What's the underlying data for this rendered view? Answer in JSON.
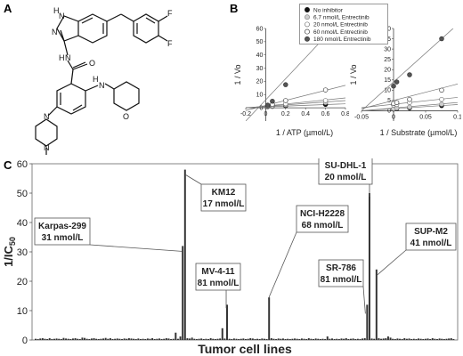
{
  "panels": {
    "a": "A",
    "b": "B",
    "c": "C"
  },
  "structure": {
    "atoms": [
      {
        "label": "H",
        "x": 0,
        "y": 0
      },
      {
        "label": "N",
        "x": 0,
        "y": 0
      },
      {
        "label": "N",
        "x": 0,
        "y": 0
      },
      {
        "label": "F",
        "x": 0,
        "y": 0
      },
      {
        "label": "F",
        "x": 0,
        "y": 0
      },
      {
        "label": "H",
        "x": 0,
        "y": 0
      },
      {
        "label": "N",
        "x": 0,
        "y": 0
      },
      {
        "label": "O",
        "x": 0,
        "y": 0
      },
      {
        "label": "H",
        "x": 0,
        "y": 0
      },
      {
        "label": "N",
        "x": 0,
        "y": 0
      },
      {
        "label": "O",
        "x": 0,
        "y": 0
      },
      {
        "label": "N",
        "x": 0,
        "y": 0
      },
      {
        "label": "N",
        "x": 0,
        "y": 0
      }
    ]
  },
  "legend": {
    "items": [
      {
        "label": "No inhibitor",
        "fill": "#111111"
      },
      {
        "label": "6.7 nmol/L Entrectinib",
        "fill": "#cfcfcf"
      },
      {
        "label": "20 nmol/L Entrectinib",
        "fill": "#ffffff"
      },
      {
        "label": "60 nmol/L Entrectinib",
        "fill": "#ffffff"
      },
      {
        "label": "180 nmol/L Entrectinib",
        "fill": "#555555"
      }
    ]
  },
  "chart_data": [
    {
      "type": "scatter",
      "panel": "B-left",
      "xlabel": "1 / ATP (µmol/L)",
      "ylabel": "1 / Vo",
      "xlim": [
        -0.2,
        0.8
      ],
      "ylim": [
        -10,
        60
      ],
      "xticks": [
        "-0.2",
        "0",
        "0.2",
        "0.4",
        "0.6",
        "0.8"
      ],
      "yticks": [
        "0",
        "10",
        "20",
        "30",
        "40",
        "50",
        "60"
      ],
      "series": [
        {
          "name": "No inhibitor",
          "x": [
            0.02,
            0.067,
            0.2,
            0.6
          ],
          "y": [
            0.8,
            1.1,
            1.6,
            2.6
          ],
          "fit": [
            [
              -0.2,
              0.2
            ],
            [
              0.8,
              3.0
            ]
          ]
        },
        {
          "name": "6.7 nmol/L Entrectinib",
          "x": [
            0.02,
            0.067,
            0.2,
            0.6
          ],
          "y": [
            0.9,
            1.3,
            2.2,
            4.0
          ],
          "fit": [
            [
              -0.2,
              0.0
            ],
            [
              0.8,
              5.5
            ]
          ]
        },
        {
          "name": "20 nmol/L Entrectinib",
          "x": [
            0.02,
            0.067,
            0.2,
            0.6
          ],
          "y": [
            1.0,
            1.6,
            3.0,
            5.5
          ],
          "fit": [
            [
              -0.2,
              -0.2
            ],
            [
              0.8,
              7.5
            ]
          ]
        },
        {
          "name": "60 nmol/L Entrectinib",
          "x": [
            0.02,
            0.067,
            0.2,
            0.6
          ],
          "y": [
            1.4,
            2.5,
            5.5,
            13.5
          ],
          "fit": [
            [
              -0.2,
              -2.0
            ],
            [
              0.8,
              17.0
            ]
          ]
        },
        {
          "name": "180 nmol/L Entrectinib",
          "x": [
            0.02,
            0.067,
            0.2,
            0.6
          ],
          "y": [
            2.0,
            5.0,
            17.5,
            52.0
          ],
          "fit": [
            [
              -0.2,
              -10.0
            ],
            [
              0.8,
              70.0
            ]
          ]
        }
      ]
    },
    {
      "type": "scatter",
      "panel": "B-right",
      "xlabel": "1 / Substrate (µmol/L)",
      "ylabel": "1 / Vo",
      "xlim": [
        -0.05,
        0.1
      ],
      "ylim": [
        -5,
        40
      ],
      "xticks": [
        "-0.05",
        "0",
        "0.05",
        "0.1"
      ],
      "yticks": [
        "0",
        "5",
        "10",
        "15",
        "20",
        "25",
        "30",
        "35",
        "40"
      ],
      "series": [
        {
          "name": "No inhibitor",
          "x": [
            0.0,
            0.005,
            0.025,
            0.075
          ],
          "y": [
            0.8,
            1.0,
            1.4,
            2.5
          ],
          "fit": [
            [
              -0.05,
              0.0
            ],
            [
              0.1,
              3.0
            ]
          ]
        },
        {
          "name": "6.7 nmol/L Entrectinib",
          "x": [
            0.0,
            0.005,
            0.025,
            0.075
          ],
          "y": [
            1.0,
            1.3,
            1.8,
            3.2
          ],
          "fit": [
            [
              -0.05,
              0.0
            ],
            [
              0.1,
              4.0
            ]
          ]
        },
        {
          "name": "20 nmol/L Entrectinib",
          "x": [
            0.0,
            0.005,
            0.025,
            0.075
          ],
          "y": [
            2.8,
            3.0,
            4.0,
            5.5
          ],
          "fit": [
            [
              -0.05,
              1.5
            ],
            [
              0.1,
              6.5
            ]
          ]
        },
        {
          "name": "60 nmol/L Entrectinib",
          "x": [
            0.0,
            0.005,
            0.025,
            0.075
          ],
          "y": [
            3.5,
            4.0,
            5.5,
            10.0
          ],
          "fit": [
            [
              -0.05,
              1.0
            ],
            [
              0.1,
              13.0
            ]
          ]
        },
        {
          "name": "180 nmol/L Entrectinib",
          "x": [
            0.0,
            0.005,
            0.025,
            0.075
          ],
          "y": [
            12.0,
            14.0,
            17.5,
            35.0
          ],
          "fit": [
            [
              -0.05,
              0.0
            ],
            [
              0.1,
              42.0
            ]
          ]
        }
      ]
    },
    {
      "type": "bar",
      "panel": "C",
      "xlabel": "Tumor cell lines",
      "ylabel": "1/IC",
      "ylabel_sub": "50",
      "ylim": [
        0,
        60
      ],
      "yticks": [
        "0",
        "10",
        "20",
        "30",
        "40",
        "50",
        "60"
      ],
      "values": [
        0.4,
        0.3,
        0.5,
        0.6,
        0.4,
        0.3,
        0.6,
        0.3,
        0.4,
        0.5,
        0.4,
        0.3,
        0.7,
        0.5,
        0.4,
        0.3,
        0.5,
        0.6,
        0.4,
        0.3,
        0.8,
        0.7,
        0.4,
        0.3,
        0.5,
        0.6,
        0.4,
        0.3,
        0.4,
        0.5,
        0.7,
        0.4,
        0.6,
        0.3,
        0.4,
        0.5,
        0.4,
        0.3,
        0.5,
        0.4,
        0.6,
        0.5,
        0.4,
        0.3,
        0.5,
        0.3,
        0.4,
        0.3,
        0.5,
        0.4,
        0.6,
        0.3,
        0.4,
        0.5,
        0.3,
        0.4,
        0.6,
        0.5,
        0.3,
        0.4,
        2.5,
        0.4,
        1.2,
        32.0,
        58.0,
        0.6,
        0.5,
        0.8,
        0.4,
        0.3,
        0.4,
        0.5,
        0.3,
        0.4,
        0.3,
        0.6,
        0.4,
        0.3,
        0.4,
        0.5,
        4.0,
        0.5,
        12.0,
        0.4,
        0.3,
        0.5,
        0.4,
        0.3,
        0.4,
        0.5,
        0.3,
        0.4,
        0.6,
        0.5,
        0.3,
        0.4,
        0.3,
        0.5,
        0.4,
        0.3,
        14.5,
        0.6,
        0.4,
        0.3,
        0.5,
        0.4,
        0.5,
        0.3,
        0.4,
        0.3,
        0.4,
        0.5,
        0.4,
        0.3,
        0.5,
        0.4,
        0.3,
        0.6,
        0.4,
        0.3,
        0.5,
        0.4,
        0.3,
        0.4,
        0.3,
        1.2,
        0.4,
        0.5,
        0.3,
        0.4,
        0.3,
        0.5,
        0.4,
        0.6,
        0.3,
        0.4,
        0.5,
        0.3,
        0.4,
        0.3,
        0.5,
        0.6,
        12.0,
        50.0,
        0.5,
        0.4,
        24.0,
        0.6,
        0.4,
        0.5,
        0.6,
        1.2,
        0.8,
        0.4,
        0.3,
        0.5,
        0.4,
        0.3,
        0.6,
        0.4,
        0.5,
        0.3,
        0.4,
        0.3,
        0.5,
        0.4,
        0.3,
        0.4,
        0.5,
        0.3,
        0.6,
        0.4,
        0.3,
        0.5,
        0.4,
        0.3,
        0.4,
        0.5,
        0.6,
        0.3
      ],
      "annotations": [
        {
          "line1": "Karpas-299",
          "line2": "31 nmol/L",
          "bar": 63
        },
        {
          "line1": "KM12",
          "line2": "17 nmol/L",
          "bar": 64
        },
        {
          "line1": "MV-4-11",
          "line2": "81 nmol/L",
          "bar": 82
        },
        {
          "line1": "NCI-H2228",
          "line2": "68 nmol/L",
          "bar": 100
        },
        {
          "line1": "SR-786",
          "line2": "81 nmol/L",
          "bar": 142
        },
        {
          "line1": "SU-DHL-1",
          "line2": "20 nmol/L",
          "bar": 143
        },
        {
          "line1": "SUP-M2",
          "line2": "41 nmol/L",
          "bar": 146
        }
      ]
    }
  ]
}
